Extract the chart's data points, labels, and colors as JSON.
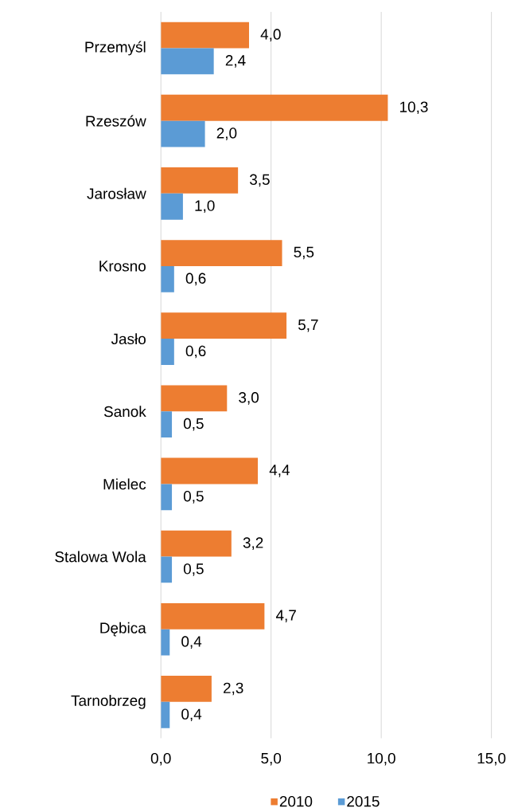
{
  "chart_data": {
    "type": "bar",
    "orientation": "horizontal",
    "categories": [
      "Przemyśl",
      "Rzeszów",
      "Jarosław",
      "Krosno",
      "Jasło",
      "Sanok",
      "Mielec",
      "Stalowa Wola",
      "Dębica",
      "Tarnobrzeg"
    ],
    "series": [
      {
        "name": "2010",
        "color": "#ed7d31",
        "values": [
          4.0,
          10.3,
          3.5,
          5.5,
          5.7,
          3.0,
          4.4,
          3.2,
          4.7,
          2.3
        ],
        "value_labels": [
          "4,0",
          "10,3",
          "3,5",
          "5,5",
          "5,7",
          "3,0",
          "4,4",
          "3,2",
          "4,7",
          "2,3"
        ]
      },
      {
        "name": "2015",
        "color": "#5b9bd5",
        "values": [
          2.4,
          2.0,
          1.0,
          0.6,
          0.6,
          0.5,
          0.5,
          0.5,
          0.4,
          0.4
        ],
        "value_labels": [
          "2,4",
          "2,0",
          "1,0",
          "0,6",
          "0,6",
          "0,5",
          "0,5",
          "0,5",
          "0,4",
          "0,4"
        ]
      }
    ],
    "xlim": [
      0,
      15
    ],
    "xticks": [
      {
        "value": 0,
        "label": "0,0"
      },
      {
        "value": 5,
        "label": "5,0"
      },
      {
        "value": 10,
        "label": "10,0"
      },
      {
        "value": 15,
        "label": "15,0"
      }
    ],
    "grid": "x",
    "legend": "bottom"
  }
}
